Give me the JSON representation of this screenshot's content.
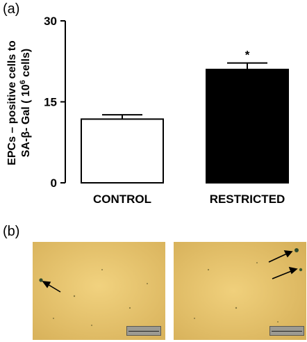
{
  "panel_a": {
    "label": "(a)"
  },
  "panel_b": {
    "label": "(b)"
  },
  "chart_data": {
    "type": "bar",
    "categories": [
      "CONTROL",
      "RESTRICTED"
    ],
    "values": [
      11.8,
      21.0
    ],
    "errors": [
      0.8,
      1.2
    ],
    "bar_colors": [
      "#ffffff",
      "#000000"
    ],
    "significance": [
      "",
      "*"
    ],
    "ylabel_line1": "EPCs – positive cells to",
    "ylabel_line2_prefix": "SA-β- Gal ( 10",
    "ylabel_line2_sup": "6",
    "ylabel_line2_suffix": " cells)",
    "ylim": [
      0,
      30
    ],
    "yticks": [
      "0",
      "15",
      "30"
    ],
    "ytick_values": [
      0,
      15,
      30
    ]
  },
  "micrographs": [
    {
      "name": "control-micrograph",
      "arrows": 1
    },
    {
      "name": "restricted-micrograph",
      "arrows": 2
    }
  ],
  "colors": {
    "micrograph_bg": "#e5bf69",
    "cell": "#2d4a2e"
  }
}
